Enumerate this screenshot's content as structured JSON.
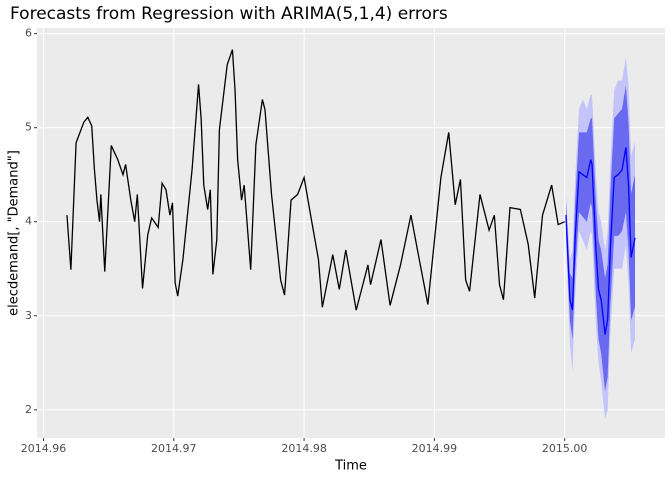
{
  "chart_data": {
    "type": "line",
    "title": "Forecasts from Regression with ARIMA(5,1,4) errors",
    "x_label": "Time",
    "y_label": "elecdemand[, \"Demand\"]",
    "xlim": [
      2014.9595,
      2015.0077
    ],
    "ylim": [
      1.7,
      6.06
    ],
    "xticks": [
      2014.96,
      2014.97,
      2014.98,
      2014.99,
      {
        "value": 2015,
        "label": "2015.00"
      }
    ],
    "yticks": [
      2,
      3,
      4,
      5,
      6
    ],
    "grid": true,
    "panel_color": "#ebebeb",
    "series": [
      {
        "color": "#000000",
        "x": [
          2014.9618,
          2014.9621,
          2014.9625,
          2014.9631,
          2014.9634,
          2014.9637,
          2014.9639,
          2014.9641,
          2014.9643,
          2014.9644,
          2014.9647,
          2014.9652,
          2014.9657,
          2014.9661,
          2014.9663,
          2014.9667,
          2014.967,
          2014.9672,
          2014.9676,
          2014.968,
          2014.9683,
          2014.9688,
          2014.9691,
          2014.9694,
          2014.9697,
          2014.9699,
          2014.9701,
          2014.9703,
          2014.9707,
          2014.9714,
          2014.9719,
          2014.9721,
          2014.9723,
          2014.9726,
          2014.9728,
          2014.973,
          2014.9733,
          2014.9735,
          2014.9741,
          2014.9745,
          2014.9747,
          2014.9749,
          2014.9752,
          2014.9754,
          2014.9759,
          2014.9763,
          2014.9768,
          2014.977,
          2014.9775,
          2014.9782,
          2014.9785,
          2014.979,
          2014.9795,
          2014.98,
          2014.9805,
          2014.9811,
          2014.9814,
          2014.9822,
          2014.9827,
          2014.9832,
          2014.984,
          2014.9849,
          2014.9851,
          2014.9859,
          2014.9866,
          2014.9874,
          2014.9882,
          2014.9887,
          2014.9895,
          2014.9905,
          2014.9911,
          2014.9916,
          2014.992,
          2014.9924,
          2014.9927,
          2014.9935,
          2014.9942,
          2014.9946,
          2014.995,
          2014.9953,
          2014.9958,
          2014.9966,
          2014.9972,
          2014.9977,
          2014.9983,
          2014.999,
          2014.9995,
          2015.0
        ],
        "values": [
          4.07,
          3.49,
          4.84,
          5.06,
          5.11,
          5.02,
          4.57,
          4.23,
          4.0,
          4.29,
          3.47,
          4.81,
          4.66,
          4.5,
          4.61,
          4.23,
          4.0,
          4.29,
          3.29,
          3.86,
          4.04,
          3.94,
          4.41,
          4.34,
          4.07,
          4.2,
          3.35,
          3.21,
          3.6,
          4.55,
          5.46,
          5.09,
          4.39,
          4.13,
          4.34,
          3.44,
          3.81,
          4.98,
          5.67,
          5.83,
          5.4,
          4.66,
          4.23,
          4.39,
          3.49,
          4.82,
          5.3,
          5.19,
          4.29,
          3.38,
          3.22,
          4.23,
          4.29,
          4.47,
          4.07,
          3.6,
          3.09,
          3.65,
          3.28,
          3.7,
          3.06,
          3.54,
          3.33,
          3.81,
          3.11,
          3.54,
          4.07,
          3.7,
          3.12,
          4.47,
          4.95,
          4.18,
          4.45,
          3.38,
          3.26,
          4.29,
          3.91,
          4.07,
          3.33,
          3.17,
          4.15,
          4.13,
          3.76,
          3.19,
          4.07,
          4.39,
          3.97,
          4.0
        ]
      },
      {
        "color": "#0000ff",
        "x": [
          2015.0001,
          2015.0004,
          2015.0006,
          2015.0008,
          2015.0011,
          2015.0014,
          2015.0017,
          2015.002,
          2015.0021,
          2015.0024,
          2015.0026,
          2015.0028,
          2015.0031,
          2015.0033,
          2015.0035,
          2015.0038,
          2015.0041,
          2015.0044,
          2015.0047,
          2015.0049,
          2015.0051,
          2015.0054
        ],
        "values": [
          4.07,
          3.17,
          3.06,
          3.81,
          4.53,
          4.5,
          4.47,
          4.66,
          4.61,
          3.7,
          3.28,
          3.17,
          2.8,
          2.96,
          3.7,
          4.47,
          4.5,
          4.55,
          4.79,
          4.39,
          3.62,
          3.83
        ],
        "bands": [
          {
            "color": "#c4c4fa",
            "lower": [
              3.8,
              2.7,
              2.4,
              3.2,
              3.9,
              3.8,
              3.7,
              3.9,
              3.85,
              2.9,
              2.5,
              2.3,
              1.9,
              2.0,
              2.8,
              3.5,
              3.5,
              3.5,
              3.75,
              3.35,
              2.6,
              2.75
            ],
            "upper": [
              4.3,
              3.6,
              3.7,
              4.45,
              5.2,
              5.3,
              5.2,
              5.35,
              5.35,
              4.5,
              4.1,
              4.0,
              3.7,
              3.9,
              4.6,
              5.4,
              5.5,
              5.5,
              5.75,
              5.45,
              4.7,
              4.85
            ]
          },
          {
            "color": "#6a6af0",
            "lower": [
              3.9,
              2.95,
              2.75,
              3.45,
              4.1,
              4.05,
              4.0,
              4.2,
              4.15,
              3.2,
              2.75,
              2.6,
              2.2,
              2.35,
              3.1,
              3.85,
              3.85,
              3.9,
              4.1,
              3.7,
              2.95,
              3.1
            ],
            "upper": [
              4.2,
              3.45,
              3.4,
              4.2,
              4.95,
              4.95,
              4.95,
              5.1,
              5.1,
              4.2,
              3.8,
              3.7,
              3.4,
              3.55,
              4.3,
              5.1,
              5.15,
              5.2,
              5.45,
              5.05,
              4.3,
              4.5
            ]
          }
        ]
      }
    ]
  }
}
